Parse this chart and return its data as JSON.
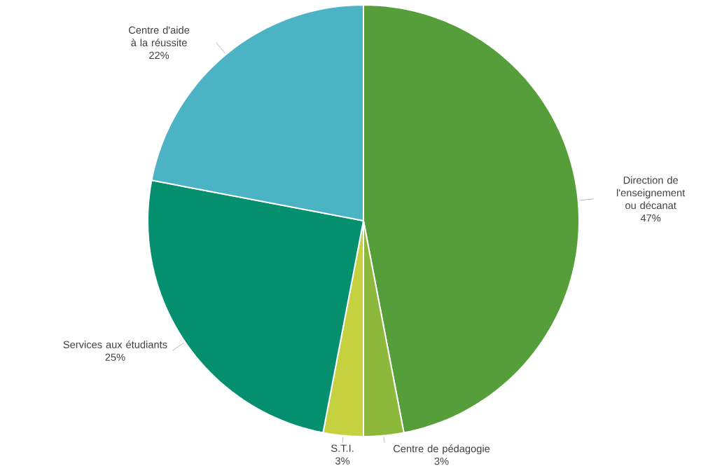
{
  "chart_data": {
    "type": "pie",
    "categories": [
      "Direction de l'enseignement ou décanat",
      "Centre de pédagogie",
      "S.T.I.",
      "Services aux étudiants",
      "Centre d'aide à la réussite"
    ],
    "values": [
      47,
      3,
      3,
      25,
      22
    ],
    "colors": [
      "#559e3a",
      "#8cb83c",
      "#c5d13f",
      "#048f6e",
      "#4bb3c4"
    ],
    "value_labels": [
      "47%",
      "3%",
      "3%",
      "25%",
      "22%"
    ]
  }
}
